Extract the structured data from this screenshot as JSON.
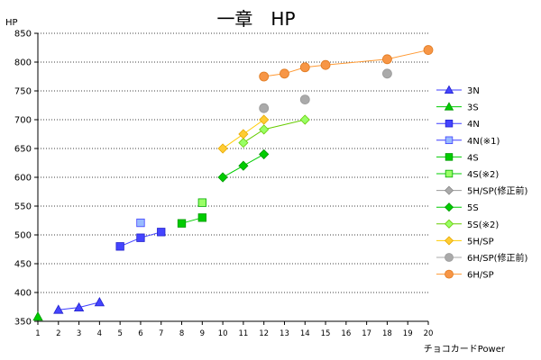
{
  "chart_data": {
    "type": "scatter",
    "title": "一章　HP",
    "ylabel": "HP",
    "xlabel": "チョコカードPower",
    "xlim": [
      1,
      20
    ],
    "ylim": [
      350,
      850
    ],
    "x_ticks": [
      1,
      2,
      3,
      4,
      5,
      6,
      7,
      8,
      9,
      10,
      11,
      12,
      13,
      14,
      15,
      16,
      17,
      18,
      19,
      20
    ],
    "y_ticks": [
      350,
      400,
      450,
      500,
      550,
      600,
      650,
      700,
      750,
      800,
      850
    ],
    "grid": "horizontal dotted",
    "legend_position": "right",
    "series": [
      {
        "name": "3N",
        "color": "#3f3fff",
        "marker": "triangle",
        "fill": "#4444ff",
        "stroke": "#2222cc",
        "points": [
          [
            2,
            370
          ],
          [
            3,
            374
          ],
          [
            4,
            383
          ]
        ],
        "connect": true
      },
      {
        "name": "3S",
        "color": "#00cc00",
        "marker": "triangle",
        "fill": "#00cc00",
        "stroke": "#009900",
        "points": [
          [
            1,
            358
          ]
        ],
        "connect": true
      },
      {
        "name": "4N",
        "color": "#3f3fff",
        "marker": "square",
        "fill": "#4444ff",
        "stroke": "#2222cc",
        "points": [
          [
            5,
            480
          ],
          [
            6,
            495
          ],
          [
            7,
            505
          ]
        ],
        "connect": true
      },
      {
        "name": "4N(※1)",
        "color": "#3f3fff",
        "marker": "square",
        "fill": "#99bbff",
        "stroke": "#3f3fff",
        "points": [
          [
            6,
            521
          ]
        ],
        "connect": false
      },
      {
        "name": "4S",
        "color": "#00cc00",
        "marker": "square",
        "fill": "#00cc00",
        "stroke": "#009900",
        "points": [
          [
            8,
            520
          ],
          [
            9,
            530
          ]
        ],
        "connect": true
      },
      {
        "name": "4S(※2)",
        "color": "#00cc00",
        "marker": "square",
        "fill": "#99ff66",
        "stroke": "#00aa00",
        "points": [
          [
            9,
            556
          ]
        ],
        "connect": false
      },
      {
        "name": "5H/SP(修正前)",
        "color": "#999999",
        "marker": "diamond",
        "fill": "#aaaaaa",
        "stroke": "#888888",
        "points": [
          [
            12,
            640
          ]
        ],
        "connect": false
      },
      {
        "name": "5S",
        "color": "#00cc00",
        "marker": "diamond",
        "fill": "#00cc00",
        "stroke": "#009900",
        "points": [
          [
            10,
            600
          ],
          [
            11,
            620
          ],
          [
            12,
            640
          ]
        ],
        "connect": true
      },
      {
        "name": "5S(※2)",
        "color": "#66cc00",
        "marker": "diamond",
        "fill": "#99ff66",
        "stroke": "#66cc00",
        "points": [
          [
            11,
            660
          ],
          [
            12,
            683
          ],
          [
            14,
            700
          ]
        ],
        "connect": true
      },
      {
        "name": "5H/SP",
        "color": "#ffcc00",
        "marker": "diamond",
        "fill": "#ffcc33",
        "stroke": "#e6a800",
        "points": [
          [
            10,
            650
          ],
          [
            11,
            675
          ],
          [
            12,
            700
          ]
        ],
        "connect": true
      },
      {
        "name": "6H/SP(修正前)",
        "color": "#aaaaaa",
        "marker": "circle",
        "fill": "#aaaaaa",
        "stroke": "#999999",
        "points": [
          [
            12,
            720
          ],
          [
            14,
            735
          ],
          [
            18,
            780
          ]
        ],
        "connect": false
      },
      {
        "name": "6H/SP",
        "color": "#ff9933",
        "marker": "circle",
        "fill": "#f79646",
        "stroke": "#e07a20",
        "points": [
          [
            12,
            775
          ],
          [
            13,
            780
          ],
          [
            14,
            791
          ],
          [
            15,
            795
          ],
          [
            18,
            805
          ],
          [
            20,
            821
          ]
        ],
        "connect": true
      }
    ]
  }
}
